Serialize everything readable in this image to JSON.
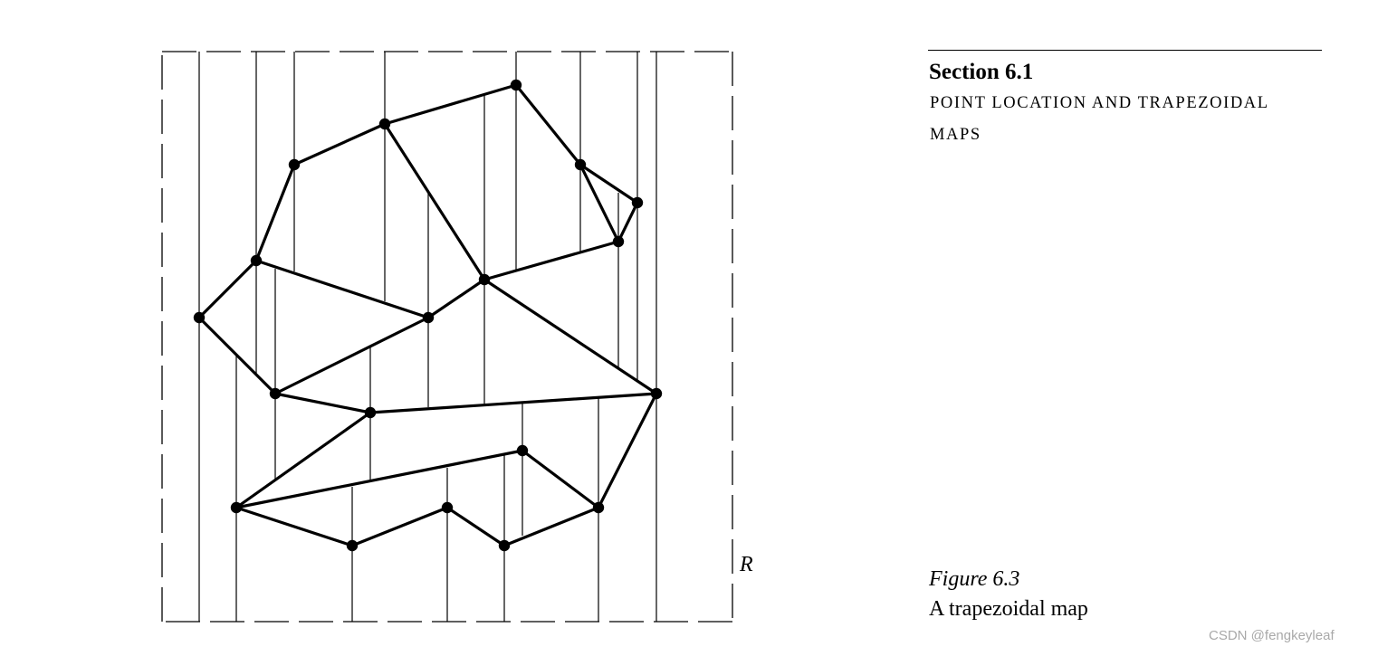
{
  "header": {
    "section": "Section 6.1",
    "title_line1": "POINT LOCATION AND TRAPEZOIDAL",
    "title_line2": "MAPS"
  },
  "figure": {
    "bounding_box_label": "R",
    "number": "Figure 6.3",
    "caption": "A trapezoidal map"
  },
  "watermark": "CSDN @fengkeyleaf"
}
